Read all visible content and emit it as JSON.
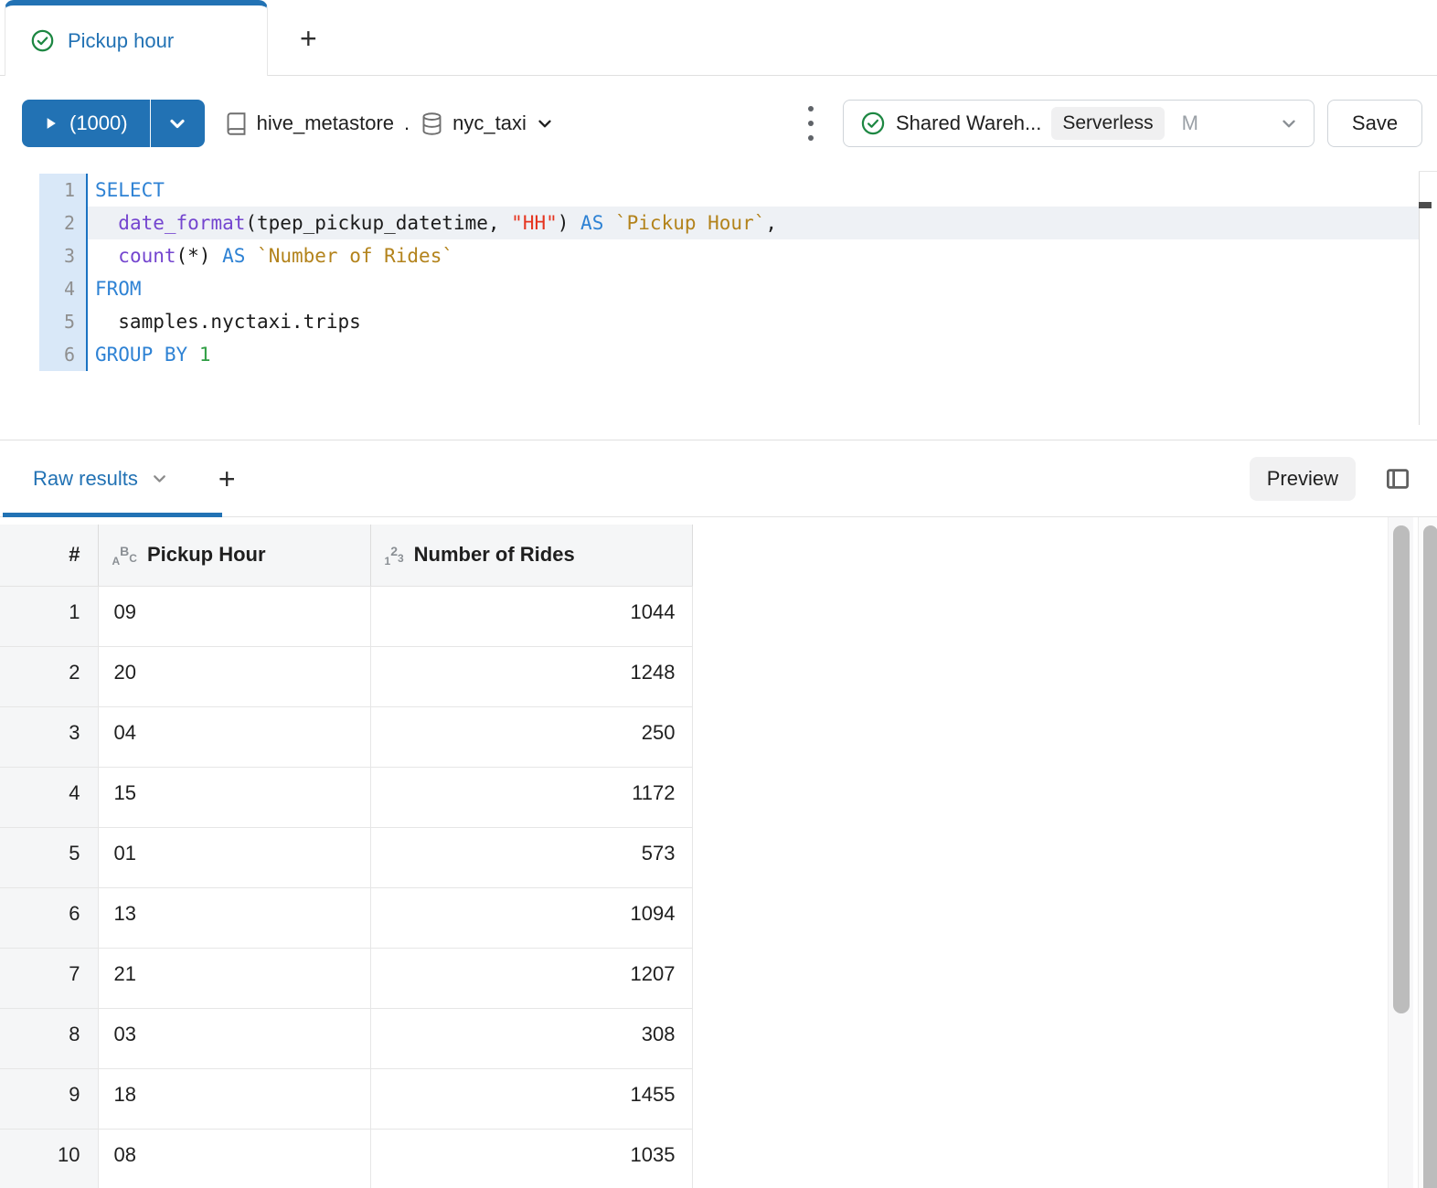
{
  "tab_bar": {
    "active_tab": "Pickup hour",
    "new_tab_label": "+"
  },
  "toolbar": {
    "run_label": "(1000)",
    "catalog": "hive_metastore",
    "catalog_separator": ".",
    "schema": "nyc_taxi",
    "warehouse": {
      "name": "Shared Wareh...",
      "badge": "Serverless",
      "size": "M"
    },
    "save_label": "Save"
  },
  "editor": {
    "active_line": 2,
    "lines": [
      {
        "n": 1,
        "tokens": [
          {
            "c": "kw",
            "t": "SELECT"
          }
        ]
      },
      {
        "n": 2,
        "tokens": [
          {
            "c": "pl",
            "t": "  "
          },
          {
            "c": "fn",
            "t": "date_format"
          },
          {
            "c": "pl",
            "t": "(tpep_pickup_datetime, "
          },
          {
            "c": "str",
            "t": "\"HH\""
          },
          {
            "c": "pl",
            "t": ") "
          },
          {
            "c": "kw",
            "t": "AS"
          },
          {
            "c": "pl",
            "t": " "
          },
          {
            "c": "bt",
            "t": "`Pickup Hour`"
          },
          {
            "c": "pl",
            "t": ","
          }
        ]
      },
      {
        "n": 3,
        "tokens": [
          {
            "c": "pl",
            "t": "  "
          },
          {
            "c": "fn",
            "t": "count"
          },
          {
            "c": "pl",
            "t": "(*) "
          },
          {
            "c": "kw",
            "t": "AS"
          },
          {
            "c": "pl",
            "t": " "
          },
          {
            "c": "bt",
            "t": "`Number of Rides`"
          }
        ]
      },
      {
        "n": 4,
        "tokens": [
          {
            "c": "kw",
            "t": "FROM"
          }
        ]
      },
      {
        "n": 5,
        "tokens": [
          {
            "c": "pl",
            "t": "  samples.nyctaxi.trips"
          }
        ]
      },
      {
        "n": 6,
        "tokens": [
          {
            "c": "kw",
            "t": "GROUP BY"
          },
          {
            "c": "pl",
            "t": " "
          },
          {
            "c": "num",
            "t": "1"
          }
        ]
      }
    ]
  },
  "results": {
    "tab_label": "Raw results",
    "add_tab_label": "+",
    "preview_label": "Preview"
  },
  "table": {
    "headers": {
      "index": "#",
      "col1": "Pickup Hour",
      "col2": "Number of Rides"
    },
    "type_icons": {
      "text": [
        "A",
        "B",
        "C"
      ],
      "number": [
        "1",
        "2",
        "3"
      ]
    },
    "rows": [
      {
        "n": "1",
        "hour": "09",
        "rides": "1044"
      },
      {
        "n": "2",
        "hour": "20",
        "rides": "1248"
      },
      {
        "n": "3",
        "hour": "04",
        "rides": "250"
      },
      {
        "n": "4",
        "hour": "15",
        "rides": "1172"
      },
      {
        "n": "5",
        "hour": "01",
        "rides": "573"
      },
      {
        "n": "6",
        "hour": "13",
        "rides": "1094"
      },
      {
        "n": "7",
        "hour": "21",
        "rides": "1207"
      },
      {
        "n": "8",
        "hour": "03",
        "rides": "308"
      },
      {
        "n": "9",
        "hour": "18",
        "rides": "1455"
      },
      {
        "n": "10",
        "hour": "08",
        "rides": "1035"
      }
    ]
  },
  "colors": {
    "accent_blue": "#2272B4",
    "success_green": "#1D8742",
    "keyword_blue": "#2E82D4",
    "function_purple": "#7445CF",
    "string_red": "#E5341F",
    "backtick_gold": "#B3831C",
    "number_green": "#2F9E44",
    "gutter_blue": "#D9E8F8"
  }
}
